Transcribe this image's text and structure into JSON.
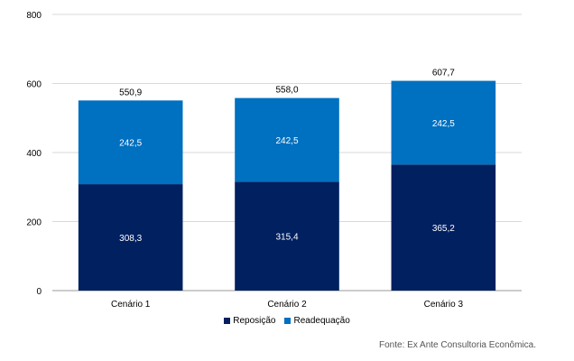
{
  "chart_data": {
    "type": "bar",
    "stacked": true,
    "categories": [
      "Cenário 1",
      "Cenário 2",
      "Cenário 3"
    ],
    "series": [
      {
        "name": "Reposição",
        "values": [
          308.3,
          315.4,
          365.2
        ],
        "labels": [
          "308,3",
          "315,4",
          "365,2"
        ],
        "color": "#002060"
      },
      {
        "name": "Readequação",
        "values": [
          242.5,
          242.5,
          242.5
        ],
        "labels": [
          "242,5",
          "242,5",
          "242,5"
        ],
        "color": "#0070C0"
      }
    ],
    "totals": [
      550.9,
      558.0,
      607.7
    ],
    "total_labels": [
      "550,9",
      "558,0",
      "607,7"
    ],
    "ylim": [
      0,
      800
    ],
    "yticks": [
      0,
      200,
      400,
      600,
      800
    ],
    "grid": true,
    "legend_position": "bottom"
  },
  "source": "Fonte: Ex Ante Consultoria Econômica."
}
